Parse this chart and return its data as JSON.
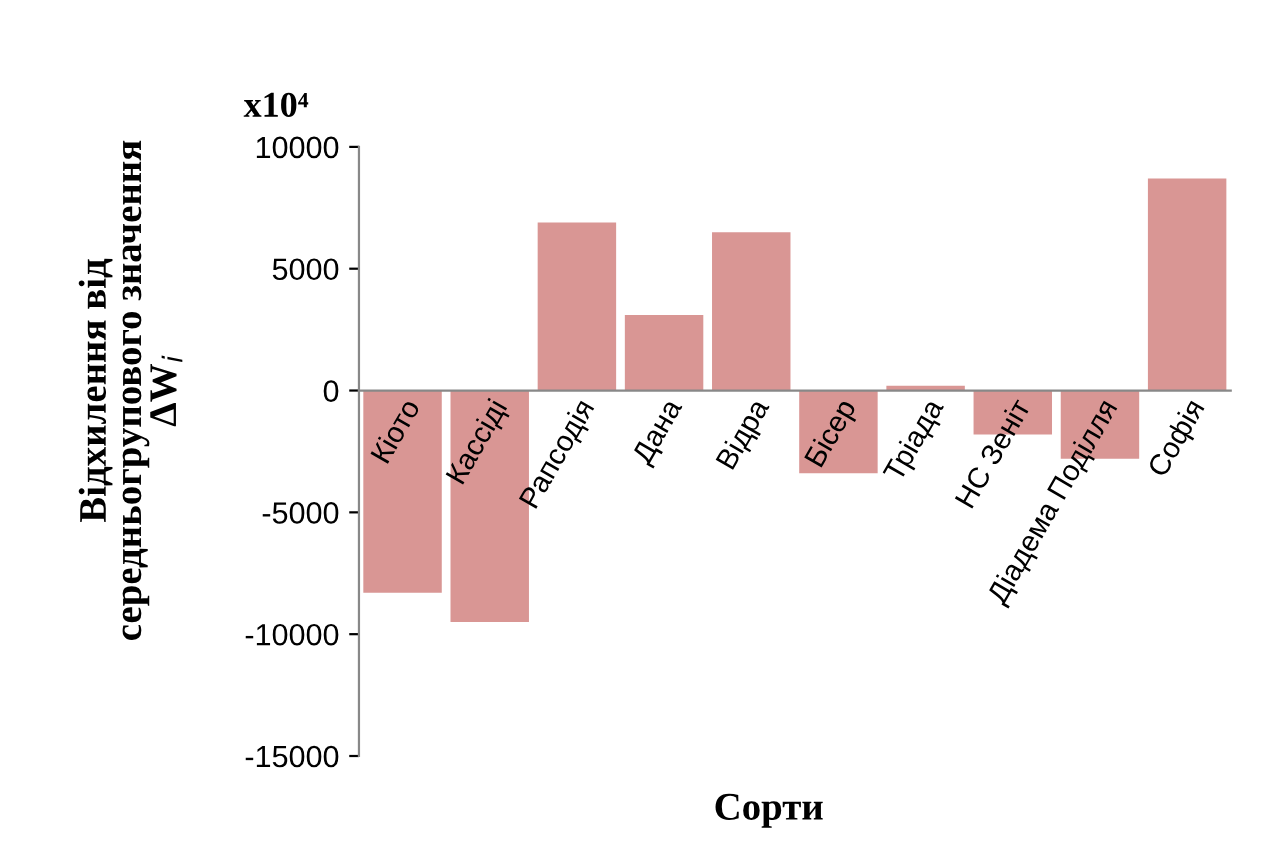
{
  "chart_data": {
    "type": "bar",
    "xlabel": "Сорти",
    "ylabel": "Відхилення від\nсередньогрупового значення\nΔW$_{i}$",
    "annotations": [
      "x10⁴"
    ],
    "categories": [
      "Кіото",
      "Кассіді",
      "Рапсодія",
      "Дана",
      "Відра",
      "Бісер",
      "Тріада",
      "НС Зеніт",
      "Діадема Поділля",
      "Софія"
    ],
    "values": [
      -8300,
      -9500,
      6900,
      3100,
      6500,
      -3400,
      200,
      -1800,
      -2800,
      8700
    ],
    "color": "#d99694",
    "ylim": [
      -15000,
      10000
    ],
    "yticks": [
      -15000,
      -10000,
      -5000,
      0,
      5000,
      10000
    ],
    "grid": false,
    "legend": false
  }
}
